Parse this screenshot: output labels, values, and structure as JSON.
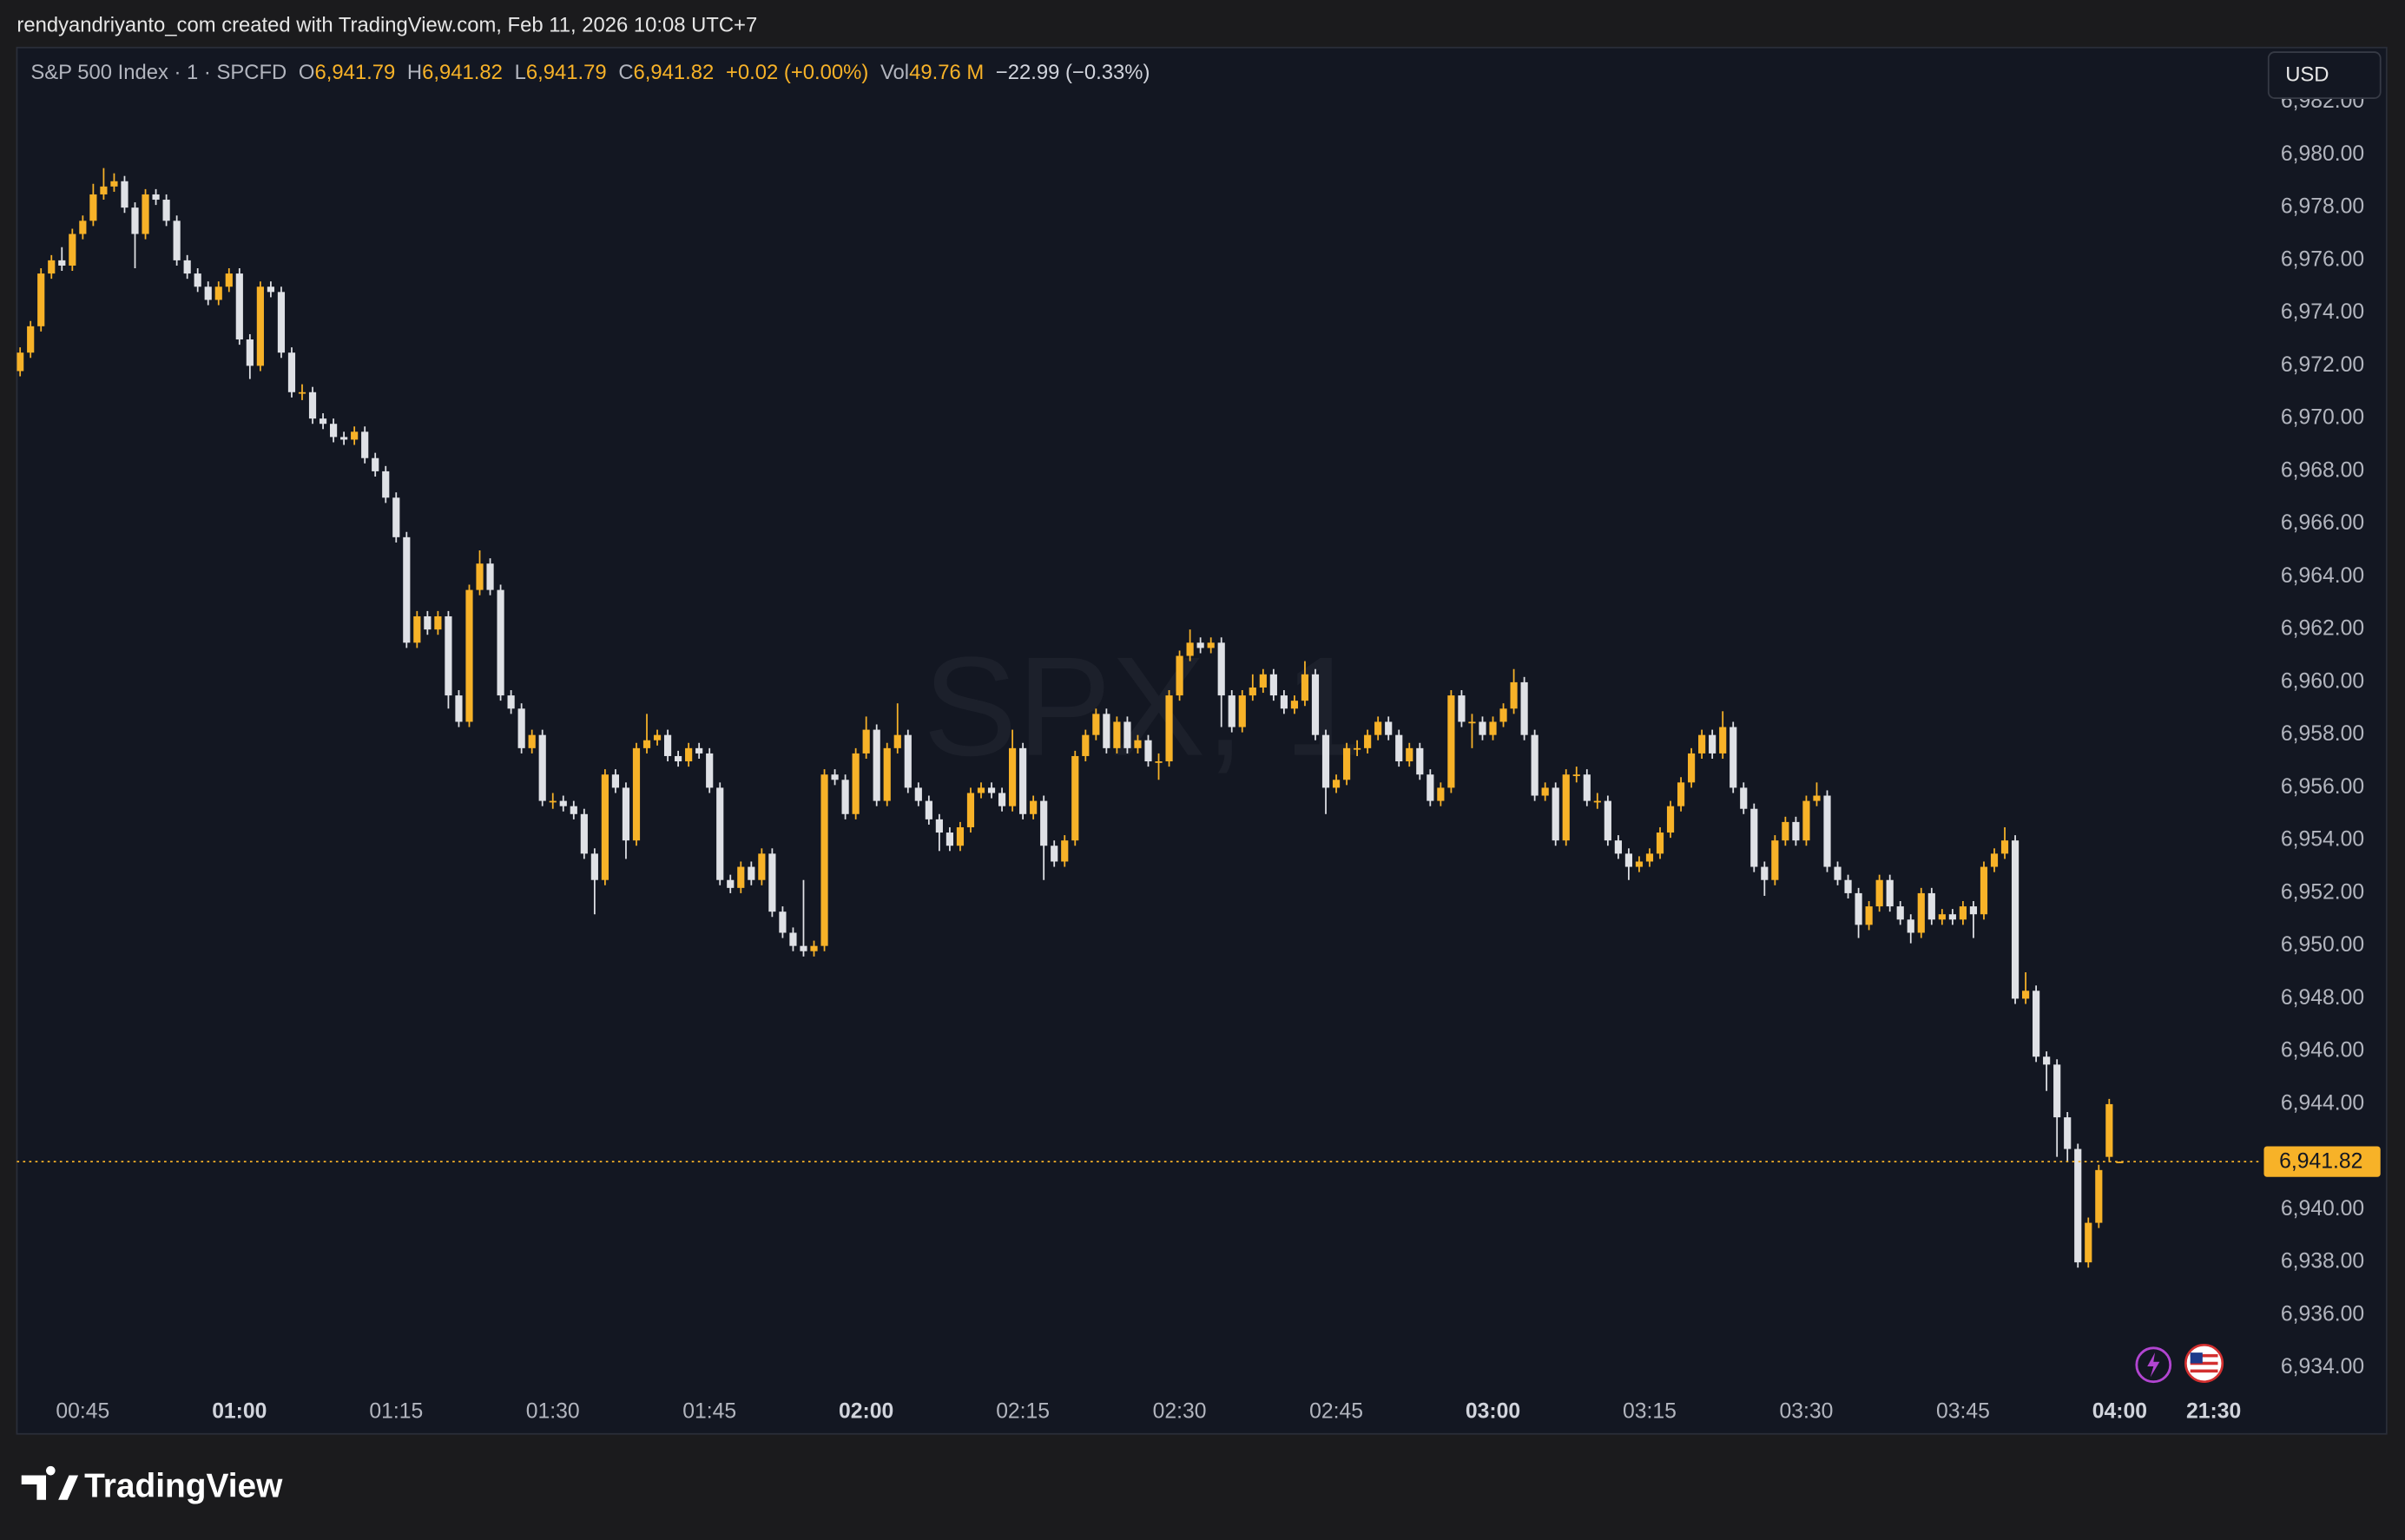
{
  "page": {
    "attribution": "rendyandriyanto_com created with TradingView.com, Feb 11, 2026 10:08 UTC+7",
    "logo": "TradingView"
  },
  "chart_data": {
    "type": "candlestick",
    "watermark": "SPX, 1",
    "currency": "USD",
    "legend": {
      "symbol": "S&P 500 Index · 1 · SPCFD",
      "open_key": "O",
      "open": "6,941.79",
      "high_key": "H",
      "high": "6,941.82",
      "low_key": "L",
      "low": "6,941.79",
      "close_key": "C",
      "close": "6,941.82",
      "change": "+0.02 (+0.00%)",
      "volume_key": "Vol",
      "volume": "49.76 M",
      "day_change": "−22.99 (−0.33%)"
    },
    "up_color": "#f7b228",
    "down_color": "#dfe1e6",
    "grid": false,
    "xlim": [
      38.69,
      253.66
    ],
    "ylim": [
      6933.24,
      6984.07
    ],
    "xticks": [
      {
        "value": 45,
        "label": "00:45"
      },
      {
        "value": 60,
        "label": "01:00"
      },
      {
        "value": 75,
        "label": "01:15"
      },
      {
        "value": 90,
        "label": "01:30"
      },
      {
        "value": 105,
        "label": "01:45"
      },
      {
        "value": 120,
        "label": "02:00"
      },
      {
        "value": 135,
        "label": "02:15"
      },
      {
        "value": 150,
        "label": "02:30"
      },
      {
        "value": 165,
        "label": "02:45"
      },
      {
        "value": 180,
        "label": "03:00"
      },
      {
        "value": 195,
        "label": "03:15"
      },
      {
        "value": 210,
        "label": "03:30"
      },
      {
        "value": 225,
        "label": "03:45"
      },
      {
        "value": 240,
        "label": "04:00"
      },
      {
        "value": 249,
        "label": "21:30"
      }
    ],
    "yticks": [
      {
        "value": 6934,
        "label": "6,934.00"
      },
      {
        "value": 6936,
        "label": "6,936.00"
      },
      {
        "value": 6938,
        "label": "6,938.00"
      },
      {
        "value": 6940,
        "label": "6,940.00"
      },
      {
        "value": 6942,
        "label": "6,942.00"
      },
      {
        "value": 6944,
        "label": "6,944.00"
      },
      {
        "value": 6946,
        "label": "6,946.00"
      },
      {
        "value": 6948,
        "label": "6,948.00"
      },
      {
        "value": 6950,
        "label": "6,950.00"
      },
      {
        "value": 6952,
        "label": "6,952.00"
      },
      {
        "value": 6954,
        "label": "6,954.00"
      },
      {
        "value": 6956,
        "label": "6,956.00"
      },
      {
        "value": 6958,
        "label": "6,958.00"
      },
      {
        "value": 6960,
        "label": "6,960.00"
      },
      {
        "value": 6962,
        "label": "6,962.00"
      },
      {
        "value": 6964,
        "label": "6,964.00"
      },
      {
        "value": 6966,
        "label": "6,966.00"
      },
      {
        "value": 6968,
        "label": "6,968.00"
      },
      {
        "value": 6970,
        "label": "6,970.00"
      },
      {
        "value": 6972,
        "label": "6,972.00"
      },
      {
        "value": 6974,
        "label": "6,974.00"
      },
      {
        "value": 6976,
        "label": "6,976.00"
      },
      {
        "value": 6978,
        "label": "6,978.00"
      },
      {
        "value": 6980,
        "label": "6,980.00"
      },
      {
        "value": 6982,
        "label": "6,982.00"
      }
    ],
    "last_price": {
      "value": 6941.82,
      "label": "6,941.82"
    },
    "x": [
      39,
      40,
      41,
      42,
      43,
      44,
      45,
      46,
      47,
      48,
      49,
      50,
      51,
      52,
      53,
      54,
      55,
      56,
      57,
      58,
      59,
      60,
      61,
      62,
      63,
      64,
      65,
      66,
      67,
      68,
      69,
      70,
      71,
      72,
      73,
      74,
      75,
      76,
      77,
      78,
      79,
      80,
      81,
      82,
      83,
      84,
      85,
      86,
      87,
      88,
      89,
      90,
      91,
      92,
      93,
      94,
      95,
      96,
      97,
      98,
      99,
      100,
      101,
      102,
      103,
      104,
      105,
      106,
      107,
      108,
      109,
      110,
      111,
      112,
      113,
      114,
      115,
      116,
      117,
      118,
      119,
      120,
      121,
      122,
      123,
      124,
      125,
      126,
      127,
      128,
      129,
      130,
      131,
      132,
      133,
      134,
      135,
      136,
      137,
      138,
      139,
      140,
      141,
      142,
      143,
      144,
      145,
      146,
      147,
      148,
      149,
      150,
      151,
      152,
      153,
      154,
      155,
      156,
      157,
      158,
      159,
      160,
      161,
      162,
      163,
      164,
      165,
      166,
      167,
      168,
      169,
      170,
      171,
      172,
      173,
      174,
      175,
      176,
      177,
      178,
      179,
      180,
      181,
      182,
      183,
      184,
      185,
      186,
      187,
      188,
      189,
      190,
      191,
      192,
      193,
      194,
      195,
      196,
      197,
      198,
      199,
      200,
      201,
      202,
      203,
      204,
      205,
      206,
      207,
      208,
      209,
      210,
      211,
      212,
      213,
      214,
      215,
      216,
      217,
      218,
      219,
      220,
      221,
      222,
      223,
      224,
      225,
      226,
      227,
      228,
      229,
      230,
      231,
      232,
      233,
      234,
      235,
      236,
      237,
      238,
      239,
      240
    ],
    "open": [
      6971.8,
      6972.5,
      6973.5,
      6975.5,
      6976,
      6975.8,
      6977,
      6977.5,
      6978.5,
      6978.8,
      6979,
      6978,
      6977,
      6978.5,
      6978.3,
      6977.5,
      6976,
      6975.5,
      6975,
      6974.5,
      6975,
      6975.5,
      6973,
      6972,
      6975,
      6974.8,
      6972.5,
      6971,
      6971,
      6970,
      6969.8,
      6969.3,
      6969.2,
      6969.5,
      6968.5,
      6968,
      6967,
      6965.5,
      6961.5,
      6962.5,
      6962,
      6962.5,
      6959.5,
      6958.5,
      6963.5,
      6964.5,
      6963.5,
      6959.5,
      6959,
      6957.5,
      6958,
      6955.5,
      6955.5,
      6955.3,
      6955,
      6953.5,
      6952.5,
      6956.5,
      6956,
      6954,
      6957.5,
      6957.8,
      6958,
      6957.2,
      6957,
      6957.5,
      6957.3,
      6956,
      6952.5,
      6952.2,
      6953,
      6952.5,
      6953.5,
      6951.3,
      6950.5,
      6950,
      6949.8,
      6950,
      6956.5,
      6956.3,
      6955,
      6957.3,
      6958.2,
      6955.5,
      6957.5,
      6958,
      6956,
      6955.5,
      6954.8,
      6954.3,
      6953.8,
      6954.5,
      6955.8,
      6956,
      6955.8,
      6955.3,
      6957.5,
      6955,
      6955.5,
      6953.8,
      6953.2,
      6954,
      6957.2,
      6958,
      6958.8,
      6957.5,
      6958.5,
      6957.5,
      6957.8,
      6957,
      6957,
      6959.5,
      6961,
      6961.5,
      6961.3,
      6961.5,
      6959.5,
      6958.3,
      6959.5,
      6959.8,
      6960.3,
      6959.5,
      6959,
      6959.3,
      6960.3,
      6958,
      6956,
      6956.3,
      6957.5,
      6957.5,
      6958,
      6958.5,
      6958,
      6957,
      6957.5,
      6956.5,
      6955.5,
      6956,
      6959.5,
      6958.5,
      6958.5,
      6958,
      6958.5,
      6959,
      6960,
      6958,
      6955.7,
      6956,
      6954,
      6956.5,
      6956.5,
      6955.5,
      6955.5,
      6954,
      6953.5,
      6953,
      6953.2,
      6953.5,
      6954.3,
      6955.3,
      6956.2,
      6957.3,
      6958,
      6957.3,
      6958.3,
      6956,
      6955.2,
      6953,
      6952.5,
      6954,
      6954.7,
      6954,
      6955.5,
      6955.7,
      6953,
      6952.5,
      6952,
      6950.8,
      6951.5,
      6952.5,
      6951.5,
      6951,
      6950.5,
      6952,
      6951,
      6951.2,
      6951,
      6951.5,
      6951.2,
      6953,
      6953.5,
      6954,
      6948,
      6948.3,
      6945.8,
      6945.5,
      6943.5,
      6942.3,
      6938,
      6939.5,
      6942,
      6941.79
    ],
    "high": [
      6972.7,
      6973.7,
      6975.7,
      6976.2,
      6976.5,
      6977.2,
      6977.7,
      6978.9,
      6979.5,
      6979.3,
      6979.2,
      6978.2,
      6978.7,
      6978.7,
      6978.5,
      6977.7,
      6976.2,
      6975.7,
      6975.2,
      6975.2,
      6975.7,
      6975.7,
      6973.2,
      6975.2,
      6975.2,
      6975,
      6972.7,
      6971.3,
      6971.2,
      6970.2,
      6970,
      6969.5,
      6969.7,
      6969.7,
      6968.7,
      6968.2,
      6967.2,
      6965.7,
      6962.7,
      6962.7,
      6962.7,
      6962.7,
      6959.7,
      6963.7,
      6965,
      6964.7,
      6963.7,
      6959.7,
      6959.2,
      6958.2,
      6958.2,
      6955.8,
      6955.7,
      6955.5,
      6955.2,
      6953.7,
      6956.7,
      6956.7,
      6956.2,
      6957.7,
      6958.8,
      6958.2,
      6958.2,
      6957.4,
      6957.7,
      6957.7,
      6957.5,
      6956.2,
      6952.7,
      6953.2,
      6953.2,
      6953.7,
      6953.7,
      6951.5,
      6950.7,
      6952.5,
      6950.2,
      6956.7,
      6956.7,
      6956.5,
      6957.5,
      6958.7,
      6958.4,
      6957.7,
      6959.2,
      6958.2,
      6956.2,
      6955.7,
      6955,
      6954.5,
      6954.7,
      6956,
      6956.2,
      6956.2,
      6956,
      6958.2,
      6957.7,
      6955.7,
      6955.7,
      6954,
      6954.2,
      6957.4,
      6958.2,
      6959,
      6959,
      6958.7,
      6958.7,
      6958,
      6958,
      6957.3,
      6959.7,
      6961.2,
      6962,
      6961.7,
      6961.7,
      6961.7,
      6959.7,
      6959.7,
      6960.3,
      6960.5,
      6960.5,
      6959.7,
      6959.5,
      6960.8,
      6960.5,
      6958.2,
      6956.5,
      6957.7,
      6957.8,
      6958.2,
      6958.7,
      6958.7,
      6958.2,
      6957.7,
      6957.7,
      6956.7,
      6956.2,
      6959.7,
      6959.7,
      6958.8,
      6958.7,
      6958.7,
      6959.2,
      6960.5,
      6960.2,
      6958.2,
      6956.2,
      6956.2,
      6956.7,
      6956.8,
      6956.7,
      6955.8,
      6955.7,
      6954.2,
      6953.7,
      6953.4,
      6953.7,
      6954.5,
      6955.5,
      6956.4,
      6957.5,
      6958.2,
      6958.2,
      6958.9,
      6958.5,
      6956.2,
      6955.4,
      6953.2,
      6954.2,
      6954.9,
      6954.9,
      6955.7,
      6956.2,
      6955.9,
      6953.2,
      6952.7,
      6952.2,
      6951.7,
      6952.7,
      6952.7,
      6951.7,
      6951.2,
      6952.2,
      6952.2,
      6951.4,
      6951.4,
      6951.7,
      6951.7,
      6953.2,
      6953.7,
      6954.5,
      6954.2,
      6949,
      6948.5,
      6946,
      6945.7,
      6943.7,
      6942.5,
      6939.7,
      6941.7,
      6944.2,
      6941.82
    ],
    "low": [
      6971.6,
      6972.3,
      6973.3,
      6975.3,
      6975.6,
      6975.6,
      6976.8,
      6977.3,
      6978.3,
      6978.6,
      6977.8,
      6975.7,
      6976.8,
      6978.1,
      6977.3,
      6975.8,
      6975.3,
      6974.8,
      6974.3,
      6974.3,
      6974.8,
      6972.8,
      6971.5,
      6971.8,
      6974.6,
      6972.3,
      6970.8,
      6970.7,
      6969.8,
      6969.6,
      6969.1,
      6969,
      6969,
      6968.3,
      6967.8,
      6966.8,
      6965.3,
      6961.3,
      6961.3,
      6961.8,
      6961.8,
      6959,
      6958.3,
      6958.3,
      6963.3,
      6963.3,
      6959.3,
      6958.8,
      6957.3,
      6957.3,
      6955.3,
      6955.2,
      6955.1,
      6954.8,
      6953.3,
      6951.2,
      6952.3,
      6955.8,
      6953.3,
      6953.8,
      6957.3,
      6957.6,
      6957,
      6956.8,
      6956.8,
      6957.1,
      6955.8,
      6952.3,
      6952,
      6952,
      6952.3,
      6952.3,
      6951.1,
      6950.3,
      6949.8,
      6949.6,
      6949.6,
      6949.8,
      6956.1,
      6954.8,
      6954.8,
      6957.1,
      6955.3,
      6955.3,
      6957.3,
      6955.8,
      6955.3,
      6954.6,
      6953.6,
      6953.6,
      6953.6,
      6954.3,
      6955.6,
      6955.6,
      6955.1,
      6955.1,
      6954.8,
      6954.8,
      6952.5,
      6953,
      6953,
      6953.8,
      6957,
      6957.8,
      6957.3,
      6957.3,
      6957.3,
      6957.3,
      6956.8,
      6956.3,
      6956.8,
      6959.3,
      6960.8,
      6961.1,
      6961.1,
      6958.3,
      6958.1,
      6958.1,
      6959.3,
      6959.6,
      6959.3,
      6958.8,
      6958.8,
      6959.1,
      6957.8,
      6955,
      6955.8,
      6956.1,
      6957.2,
      6957.3,
      6957.8,
      6957.8,
      6956.8,
      6956.8,
      6956.3,
      6955.3,
      6955.3,
      6955.8,
      6958.3,
      6957.5,
      6957.8,
      6957.8,
      6958.3,
      6958.8,
      6957.8,
      6955.5,
      6955.5,
      6953.8,
      6953.8,
      6956.2,
      6955.3,
      6955.2,
      6953.8,
      6953.3,
      6952.5,
      6952.8,
      6953,
      6953.3,
      6954.1,
      6955.1,
      6956,
      6957.1,
      6957.1,
      6957.1,
      6955.8,
      6955,
      6952.8,
      6951.9,
      6952.3,
      6953.8,
      6953.8,
      6953.8,
      6955.3,
      6952.8,
      6952.3,
      6951.8,
      6950.3,
      6950.6,
      6951.3,
      6951.3,
      6950.8,
      6950.1,
      6950.3,
      6950.8,
      6950.8,
      6950.8,
      6950.8,
      6950.3,
      6951,
      6952.8,
      6953.3,
      6947.8,
      6947.8,
      6945.6,
      6944.5,
      6942,
      6941.8,
      6937.8,
      6937.8,
      6939.3,
      6941.8,
      6941.79
    ],
    "close": [
      6972.5,
      6973.5,
      6975.5,
      6976,
      6975.8,
      6977,
      6977.5,
      6978.5,
      6978.8,
      6979,
      6978,
      6977,
      6978.5,
      6978.3,
      6977.5,
      6976,
      6975.5,
      6975,
      6974.5,
      6975,
      6975.5,
      6973,
      6972,
      6975,
      6974.8,
      6972.5,
      6971,
      6971,
      6970,
      6969.8,
      6969.3,
      6969.2,
      6969.5,
      6968.5,
      6968,
      6967,
      6965.5,
      6961.5,
      6962.5,
      6962,
      6962.5,
      6959.5,
      6958.5,
      6963.5,
      6964.5,
      6963.5,
      6959.5,
      6959,
      6957.5,
      6958,
      6955.5,
      6955.5,
      6955.3,
      6955,
      6953.5,
      6952.5,
      6956.5,
      6956,
      6954,
      6957.5,
      6957.8,
      6958,
      6957.2,
      6957,
      6957.5,
      6957.3,
      6956,
      6952.5,
      6952.2,
      6953,
      6952.5,
      6953.5,
      6951.3,
      6950.5,
      6950,
      6949.8,
      6950,
      6956.5,
      6956.3,
      6955,
      6957.3,
      6958.2,
      6955.5,
      6957.5,
      6958,
      6956,
      6955.5,
      6954.8,
      6954.3,
      6953.8,
      6954.5,
      6955.8,
      6956,
      6955.8,
      6955.3,
      6957.5,
      6955,
      6955.5,
      6953.8,
      6953.2,
      6954,
      6957.2,
      6958,
      6958.8,
      6957.5,
      6958.5,
      6957.5,
      6957.8,
      6957,
      6957,
      6959.5,
      6961,
      6961.5,
      6961.3,
      6961.5,
      6959.5,
      6958.3,
      6959.5,
      6959.8,
      6960.3,
      6959.5,
      6959,
      6959.3,
      6960.3,
      6958,
      6956,
      6956.3,
      6957.5,
      6957.5,
      6958,
      6958.5,
      6958,
      6957,
      6957.5,
      6956.5,
      6955.5,
      6956,
      6959.5,
      6958.5,
      6958.5,
      6958,
      6958.5,
      6959,
      6960,
      6958,
      6955.7,
      6956,
      6954,
      6956.5,
      6956.5,
      6955.5,
      6955.5,
      6954,
      6953.5,
      6953,
      6953.2,
      6953.5,
      6954.3,
      6955.3,
      6956.2,
      6957.3,
      6958,
      6957.3,
      6958.3,
      6956,
      6955.2,
      6953,
      6952.5,
      6954,
      6954.7,
      6954,
      6955.5,
      6955.7,
      6953,
      6952.5,
      6952,
      6950.8,
      6951.5,
      6952.5,
      6951.5,
      6951,
      6950.5,
      6952,
      6951,
      6951.2,
      6951,
      6951.5,
      6951.2,
      6953,
      6953.5,
      6954,
      6948,
      6948.3,
      6945.8,
      6945.5,
      6943.5,
      6942.3,
      6938,
      6939.5,
      6941.5,
      6944,
      6941.82
    ]
  }
}
